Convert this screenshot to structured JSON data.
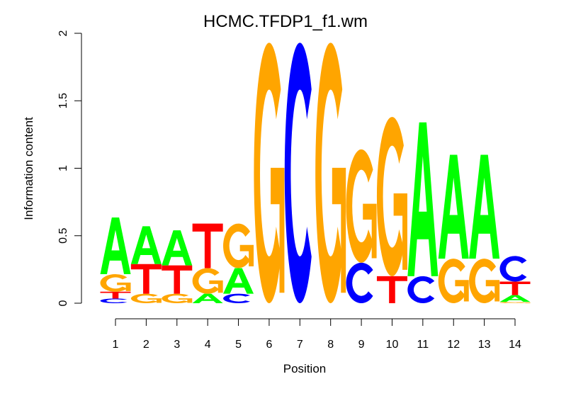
{
  "chart_data": {
    "type": "sequence-logo",
    "title": "HCMC.TFDP1_f1.wm",
    "xlabel": "Position",
    "ylabel": "Information content",
    "ylim": [
      0,
      2
    ],
    "yticks": [
      "0",
      "0.5",
      "1",
      "1.5",
      "2"
    ],
    "yticks_values": [
      0,
      0.5,
      1,
      1.5,
      2
    ],
    "positions": [
      "1",
      "2",
      "3",
      "4",
      "5",
      "6",
      "7",
      "8",
      "9",
      "10",
      "11",
      "12",
      "13",
      "14"
    ],
    "colors": {
      "A": "#00ff00",
      "C": "#0000ff",
      "G": "#ffa500",
      "T": "#ff0000"
    },
    "stacks": [
      [
        {
          "l": "C",
          "v": 0.035
        },
        {
          "l": "T",
          "v": 0.05
        },
        {
          "l": "G",
          "v": 0.13
        },
        {
          "l": "A",
          "v": 0.42
        }
      ],
      [
        {
          "l": "G",
          "v": 0.07
        },
        {
          "l": "T",
          "v": 0.22
        },
        {
          "l": "A",
          "v": 0.28
        }
      ],
      [
        {
          "l": "G",
          "v": 0.07
        },
        {
          "l": "T",
          "v": 0.21
        },
        {
          "l": "A",
          "v": 0.26
        }
      ],
      [
        {
          "l": "A",
          "v": 0.07
        },
        {
          "l": "G",
          "v": 0.19
        },
        {
          "l": "T",
          "v": 0.33
        }
      ],
      [
        {
          "l": "C",
          "v": 0.07
        },
        {
          "l": "A",
          "v": 0.19
        },
        {
          "l": "G",
          "v": 0.33
        }
      ],
      [
        {
          "l": "G",
          "v": 1.93
        }
      ],
      [
        {
          "l": "C",
          "v": 1.93
        }
      ],
      [
        {
          "l": "G",
          "v": 1.93
        }
      ],
      [
        {
          "l": "C",
          "v": 0.3
        },
        {
          "l": "G",
          "v": 0.84
        }
      ],
      [
        {
          "l": "T",
          "v": 0.2
        },
        {
          "l": "G",
          "v": 1.18
        }
      ],
      [
        {
          "l": "C",
          "v": 0.2
        },
        {
          "l": "A",
          "v": 1.14
        }
      ],
      [
        {
          "l": "G",
          "v": 0.33
        },
        {
          "l": "A",
          "v": 0.77
        }
      ],
      [
        {
          "l": "G",
          "v": 0.33
        },
        {
          "l": "A",
          "v": 0.77
        }
      ],
      [
        {
          "l": "G",
          "v": 0.01
        },
        {
          "l": "A",
          "v": 0.05
        },
        {
          "l": "T",
          "v": 0.1
        },
        {
          "l": "C",
          "v": 0.19
        }
      ]
    ]
  }
}
